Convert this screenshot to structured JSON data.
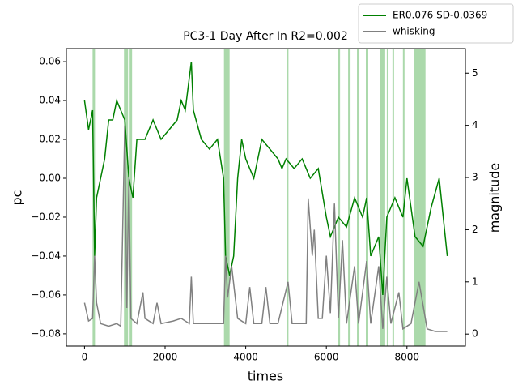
{
  "chart_data": {
    "type": "line",
    "title": "PC3-1 Day After In R2=0.002",
    "x_label": "times",
    "y_label": "pc",
    "y2_label": "magnitude",
    "xlim": [
      -450,
      9450
    ],
    "xticks": [
      0,
      2000,
      4000,
      6000,
      8000
    ],
    "ylim": [
      -0.0863,
      0.0667
    ],
    "yticks": [
      {
        "value": -0.08,
        "label": "−0.08"
      },
      {
        "value": -0.06,
        "label": "−0.06"
      },
      {
        "value": -0.04,
        "label": "−0.04"
      },
      {
        "value": -0.02,
        "label": "−0.02"
      },
      {
        "value": 0,
        "label": "0.00"
      },
      0.02,
      0.04,
      0.06
    ],
    "y2lim": [
      -0.23,
      5.47
    ],
    "y2ticks": [
      0,
      1,
      2,
      3,
      4,
      5
    ],
    "span_color": "#2ca02c",
    "spans": [
      [
        200,
        260
      ],
      [
        980,
        1080
      ],
      [
        1120,
        1180
      ],
      [
        3460,
        3600
      ],
      [
        5020,
        5060
      ],
      [
        6280,
        6340
      ],
      [
        6540,
        6600
      ],
      [
        6760,
        6820
      ],
      [
        6980,
        7040
      ],
      [
        7340,
        7460
      ],
      [
        7500,
        7540
      ],
      [
        7640,
        7680
      ],
      [
        7900,
        7940
      ],
      [
        8180,
        8460
      ]
    ],
    "series": [
      {
        "name": "ER0.076 SD-0.0369",
        "color": "#008000",
        "x": [
          0,
          100,
          200,
          250,
          300,
          400,
          500,
          600,
          700,
          800,
          900,
          1000,
          1100,
          1200,
          1300,
          1500,
          1700,
          1900,
          2100,
          2300,
          2400,
          2500,
          2650,
          2700,
          2900,
          3100,
          3300,
          3450,
          3500,
          3600,
          3700,
          3800,
          3900,
          4000,
          4200,
          4400,
          4600,
          4800,
          4900,
          5000,
          5200,
          5400,
          5600,
          5800,
          6000,
          6100,
          6300,
          6500,
          6700,
          6900,
          7000,
          7100,
          7300,
          7400,
          7500,
          7700,
          7900,
          8000,
          8200,
          8400,
          8600,
          8800,
          9000
        ],
        "values": [
          0.04,
          0.025,
          0.035,
          -0.04,
          -0.01,
          0.0,
          0.01,
          0.03,
          0.03,
          0.04,
          0.035,
          0.03,
          0.0,
          -0.01,
          0.02,
          0.02,
          0.03,
          0.02,
          0.025,
          0.03,
          0.04,
          0.035,
          0.06,
          0.035,
          0.02,
          0.015,
          0.02,
          0.0,
          -0.04,
          -0.05,
          -0.04,
          0.0,
          0.02,
          0.01,
          0.0,
          0.02,
          0.015,
          0.01,
          0.005,
          0.01,
          0.005,
          0.01,
          0.0,
          0.005,
          -0.02,
          -0.03,
          -0.02,
          -0.025,
          -0.01,
          -0.02,
          -0.01,
          -0.04,
          -0.03,
          -0.06,
          -0.02,
          -0.01,
          -0.02,
          0.0,
          -0.03,
          -0.035,
          -0.015,
          0.0,
          -0.04
        ]
      },
      {
        "name": "whisking",
        "color": "#808080",
        "axis": "y2",
        "x": [
          0,
          100,
          200,
          250,
          300,
          400,
          600,
          800,
          900,
          1000,
          1050,
          1100,
          1150,
          1300,
          1450,
          1500,
          1700,
          1800,
          1900,
          2200,
          2400,
          2600,
          2650,
          2700,
          3000,
          3300,
          3450,
          3500,
          3550,
          3650,
          3800,
          4000,
          4100,
          4200,
          4400,
          4500,
          4600,
          4800,
          5050,
          5150,
          5500,
          5550,
          5650,
          5700,
          5800,
          5900,
          6000,
          6100,
          6200,
          6300,
          6400,
          6500,
          6700,
          6800,
          7000,
          7100,
          7300,
          7400,
          7500,
          7600,
          7800,
          7900,
          8100,
          8300,
          8500,
          8700,
          9000
        ],
        "values": [
          0.6,
          0.25,
          0.3,
          1.5,
          0.6,
          0.2,
          0.15,
          0.2,
          0.15,
          4.0,
          0.5,
          3.0,
          0.3,
          0.2,
          0.8,
          0.3,
          0.2,
          0.6,
          0.2,
          0.25,
          0.3,
          0.2,
          1.1,
          0.2,
          0.2,
          0.2,
          0.2,
          1.5,
          0.7,
          1.3,
          0.3,
          0.2,
          0.9,
          0.2,
          0.2,
          0.9,
          0.2,
          0.2,
          1.0,
          0.2,
          0.2,
          2.6,
          1.5,
          2.0,
          0.3,
          0.3,
          1.5,
          0.4,
          2.5,
          0.3,
          1.8,
          0.2,
          1.3,
          0.2,
          1.4,
          0.2,
          1.3,
          0.1,
          1.1,
          0.2,
          0.8,
          0.1,
          0.2,
          1.0,
          0.1,
          0.05,
          0.05
        ]
      }
    ],
    "legend": "upper right"
  }
}
